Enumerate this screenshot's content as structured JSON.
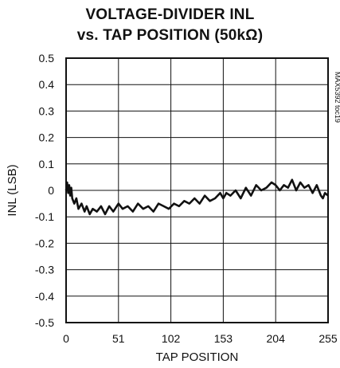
{
  "chart_data": {
    "type": "line",
    "title_line1": "VOLTAGE-DIVIDER INL",
    "title_line2": "vs. TAP POSITION (50kΩ)",
    "xlabel": "TAP POSITION",
    "ylabel": "INL (LSB)",
    "side_label": "MAX5392 toc19",
    "xlim": [
      0,
      255
    ],
    "ylim": [
      -0.5,
      0.5
    ],
    "grid": true,
    "x_ticks": [
      "0",
      "51",
      "102",
      "153",
      "204",
      "255"
    ],
    "y_ticks": [
      "0.5",
      "0.4",
      "0.3",
      "0.2",
      "0.1",
      "0",
      "-0.1",
      "-0.2",
      "-0.3",
      "-0.4",
      "-0.5"
    ],
    "series": [
      {
        "x": [
          0,
          1,
          2,
          3,
          4,
          5,
          6,
          8,
          10,
          12,
          15,
          18,
          20,
          23,
          26,
          30,
          34,
          38,
          42,
          46,
          51,
          55,
          60,
          65,
          70,
          75,
          80,
          85,
          90,
          95,
          100,
          105,
          110,
          115,
          120,
          125,
          130,
          135,
          140,
          145,
          150,
          153,
          156,
          160,
          165,
          170,
          175,
          180,
          185,
          190,
          195,
          200,
          204,
          208,
          212,
          216,
          220,
          224,
          228,
          232,
          236,
          240,
          244,
          248,
          250,
          252,
          255
        ],
        "y": [
          0.0,
          0.03,
          -0.01,
          0.02,
          -0.02,
          0.01,
          -0.03,
          -0.05,
          -0.03,
          -0.07,
          -0.05,
          -0.08,
          -0.06,
          -0.09,
          -0.07,
          -0.08,
          -0.06,
          -0.09,
          -0.06,
          -0.08,
          -0.05,
          -0.07,
          -0.06,
          -0.08,
          -0.05,
          -0.07,
          -0.06,
          -0.08,
          -0.05,
          -0.06,
          -0.07,
          -0.05,
          -0.06,
          -0.04,
          -0.05,
          -0.03,
          -0.05,
          -0.02,
          -0.04,
          -0.03,
          -0.01,
          -0.03,
          -0.01,
          -0.02,
          0.0,
          -0.03,
          0.01,
          -0.02,
          0.02,
          0.0,
          0.01,
          0.03,
          0.02,
          0.0,
          0.02,
          0.01,
          0.04,
          0.0,
          0.03,
          0.01,
          0.02,
          -0.01,
          0.02,
          -0.02,
          -0.03,
          -0.01,
          -0.02
        ]
      }
    ]
  }
}
